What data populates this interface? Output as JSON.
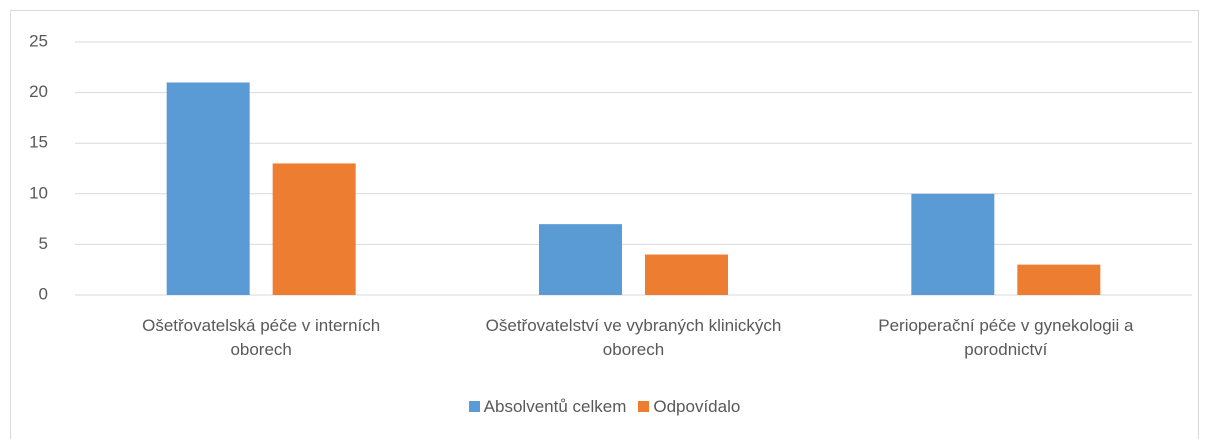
{
  "chart_data": {
    "type": "bar",
    "categories": [
      "Ošetřovatelská péče v interních oborech",
      "Ošetřovatelství ve vybraných klinických oborech",
      "Perioperační péče v gynekologii a porodnictví"
    ],
    "series": [
      {
        "name": "Absolventů celkem",
        "color": "#5b9bd5",
        "values": [
          21,
          7,
          10
        ]
      },
      {
        "name": "Odpovídalo",
        "color": "#ed7d31",
        "values": [
          13,
          4,
          3
        ]
      }
    ],
    "ylim": [
      0,
      25
    ],
    "yticks": [
      0,
      5,
      10,
      15,
      20,
      25
    ],
    "grid": true,
    "legend": "bottom"
  }
}
